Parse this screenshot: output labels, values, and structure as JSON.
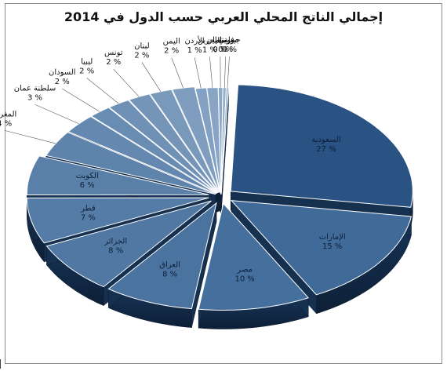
{
  "chart_data": {
    "type": "pie",
    "title": "إجمالي الناتج المحلي العربي حسب الدول في 2014",
    "slices": [
      {
        "label": "السعودية",
        "value": 27,
        "display": "27 %"
      },
      {
        "label": "الإمارات",
        "value": 15,
        "display": "15 %"
      },
      {
        "label": "مصر",
        "value": 10,
        "display": "10 %"
      },
      {
        "label": "العراق",
        "value": 8,
        "display": "8 %"
      },
      {
        "label": "الجزائر",
        "value": 8,
        "display": "8 %"
      },
      {
        "label": "قطر",
        "value": 7,
        "display": "7 %"
      },
      {
        "label": "الكويت",
        "value": 6,
        "display": "6 %"
      },
      {
        "label": "المغرب",
        "value": 4,
        "display": "4 %"
      },
      {
        "label": "سلطنة عمان",
        "value": 3,
        "display": "3 %"
      },
      {
        "label": "السودان",
        "value": 2,
        "display": "2 %"
      },
      {
        "label": "ليبيا",
        "value": 2,
        "display": "2 %"
      },
      {
        "label": "تونس",
        "value": 2,
        "display": "2 %"
      },
      {
        "label": "لبنان",
        "value": 2,
        "display": "2 %"
      },
      {
        "label": "اليمن",
        "value": 2,
        "display": "2 %"
      },
      {
        "label": "الأردن",
        "value": 1,
        "display": "1 %"
      },
      {
        "label": "البحرين",
        "value": 1,
        "display": "1 %"
      },
      {
        "label": "فلسطين",
        "value": 0.4,
        "display": "0 %"
      },
      {
        "label": "موريتانيا",
        "value": 0.3,
        "display": "0 %"
      },
      {
        "label": "جيبوتي",
        "value": 0.2,
        "display": "0 %"
      }
    ],
    "colors": {
      "dark": "#1f3f66",
      "mid": "#3b6796",
      "light": "#a8bfd8",
      "edge": "#ffffff"
    },
    "legend": "none",
    "style": "exploded-3d"
  }
}
